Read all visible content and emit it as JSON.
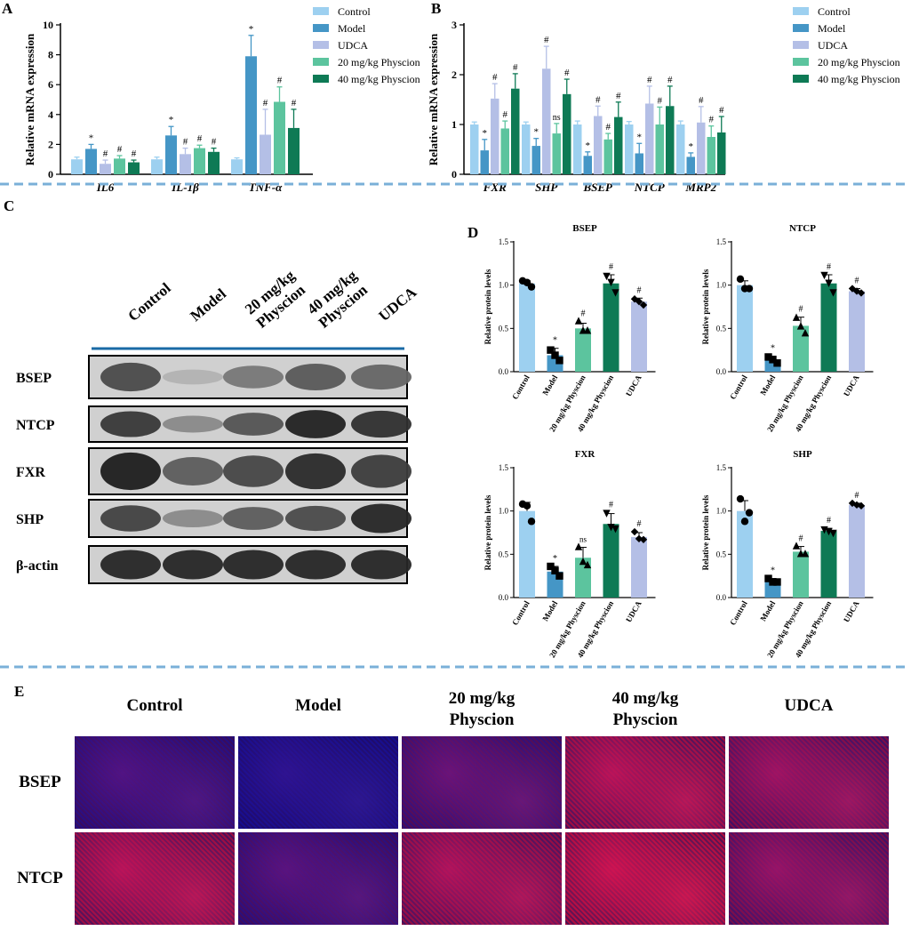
{
  "colors": {
    "control": "#9dd0f0",
    "model": "#4596c6",
    "udca": "#b4bfe6",
    "phy20": "#5cc49e",
    "phy40": "#0e7a55",
    "divider": "#7ab0d8",
    "blot_bg": "#d0d0d0",
    "blot_band": "#202020",
    "fluor_blue": "#1a1aa8",
    "fluor_red": "#d42020"
  },
  "panel_letters": {
    "a": "A",
    "b": "B",
    "c": "C",
    "d": "D",
    "e": "E"
  },
  "legend": [
    "Control",
    "Model",
    "UDCA",
    "20 mg/kg Physcion",
    "40 mg/kg Physcion"
  ],
  "chart_data": [
    {
      "id": "A",
      "type": "bar",
      "ylabel": "Relative mRNA expression",
      "ylim": [
        0,
        10
      ],
      "yticks": [
        0,
        2,
        4,
        6,
        8,
        10
      ],
      "categories": [
        "IL6",
        "IL-1β",
        "TNF-α"
      ],
      "series": [
        {
          "name": "Control",
          "color_key": "control",
          "values": [
            1.0,
            1.0,
            1.0
          ],
          "errors": [
            0.15,
            0.15,
            0.1
          ],
          "marks": [
            "",
            "",
            ""
          ]
        },
        {
          "name": "Model",
          "color_key": "model",
          "values": [
            1.7,
            2.6,
            7.9
          ],
          "errors": [
            0.3,
            0.6,
            1.4
          ],
          "marks": [
            "*",
            "*",
            "*"
          ]
        },
        {
          "name": "UDCA",
          "color_key": "udca",
          "values": [
            0.7,
            1.35,
            2.65
          ],
          "errors": [
            0.25,
            0.4,
            1.7
          ],
          "marks": [
            "#",
            "#",
            "#"
          ]
        },
        {
          "name": "20 mg/kg Physcion",
          "color_key": "phy20",
          "values": [
            1.05,
            1.75,
            4.85
          ],
          "errors": [
            0.2,
            0.2,
            1.0
          ],
          "marks": [
            "#",
            "#",
            "#"
          ]
        },
        {
          "name": "40 mg/kg Physcion",
          "color_key": "phy40",
          "values": [
            0.8,
            1.5,
            3.1
          ],
          "errors": [
            0.15,
            0.25,
            1.25
          ],
          "marks": [
            "#",
            "#",
            "#"
          ]
        }
      ]
    },
    {
      "id": "B",
      "type": "bar",
      "ylabel": "Relative mRNA expression",
      "ylim": [
        0,
        3
      ],
      "yticks": [
        0,
        1,
        2,
        3
      ],
      "categories": [
        "FXR",
        "SHP",
        "BSEP",
        "NTCP",
        "MRP2"
      ],
      "series": [
        {
          "name": "Control",
          "color_key": "control",
          "values": [
            1.0,
            1.0,
            1.0,
            1.0,
            1.0
          ],
          "errors": [
            0.05,
            0.05,
            0.07,
            0.06,
            0.07
          ],
          "marks": [
            "",
            "",
            "",
            "",
            ""
          ]
        },
        {
          "name": "Model",
          "color_key": "model",
          "values": [
            0.48,
            0.57,
            0.37,
            0.42,
            0.35
          ],
          "errors": [
            0.22,
            0.15,
            0.08,
            0.2,
            0.08
          ],
          "marks": [
            "*",
            "*",
            "*",
            "*",
            "*"
          ]
        },
        {
          "name": "UDCA",
          "color_key": "udca",
          "values": [
            1.52,
            2.12,
            1.17,
            1.42,
            1.04
          ],
          "errors": [
            0.3,
            0.45,
            0.2,
            0.35,
            0.32
          ],
          "marks": [
            "#",
            "#",
            "#",
            "#",
            "#"
          ]
        },
        {
          "name": "20 mg/kg Physcion",
          "color_key": "phy20",
          "values": [
            0.92,
            0.82,
            0.7,
            1.0,
            0.75
          ],
          "errors": [
            0.15,
            0.2,
            0.12,
            0.35,
            0.22
          ],
          "marks": [
            "#",
            "ns",
            "#",
            "#",
            "#"
          ]
        },
        {
          "name": "40 mg/kg Physcion",
          "color_key": "phy40",
          "values": [
            1.72,
            1.61,
            1.15,
            1.37,
            0.84
          ],
          "errors": [
            0.3,
            0.3,
            0.3,
            0.4,
            0.32
          ],
          "marks": [
            "#",
            "#",
            "#",
            "#",
            "#"
          ]
        }
      ]
    },
    {
      "id": "D-BSEP",
      "type": "bar",
      "title": "BSEP",
      "ylabel": "Relative protein levels",
      "ylim": [
        0,
        1.5
      ],
      "yticks": [
        "0.0",
        "0.5",
        "1.0",
        "1.5"
      ],
      "categories": [
        "Control",
        "Model",
        "20 mg/kg Physcion",
        "40 mg/kg Physcion",
        "UDCA"
      ],
      "color_keys": [
        "control",
        "model",
        "phy20",
        "phy40",
        "udca"
      ],
      "markers": [
        "circle",
        "square",
        "triangle",
        "triangle-down",
        "diamond"
      ],
      "values": [
        1.02,
        0.19,
        0.5,
        1.02,
        0.81
      ],
      "errors": [
        0.03,
        0.08,
        0.06,
        0.1,
        0.04
      ],
      "points": [
        [
          1.05,
          0.98,
          1.03
        ],
        [
          0.25,
          0.13,
          0.19
        ],
        [
          0.58,
          0.47,
          0.47
        ],
        [
          1.11,
          0.92,
          1.04
        ],
        [
          0.84,
          0.77,
          0.81
        ]
      ],
      "marks": [
        "",
        "*",
        "#",
        "#",
        "#"
      ]
    },
    {
      "id": "D-NTCP",
      "type": "bar",
      "title": "NTCP",
      "ylabel": "Relative protein levels",
      "ylim": [
        0,
        1.5
      ],
      "yticks": [
        "0.0",
        "0.5",
        "1.0",
        "1.5"
      ],
      "categories": [
        "Control",
        "Model",
        "20 mg/kg Physcion",
        "40 mg/kg Physcion",
        "UDCA"
      ],
      "color_keys": [
        "control",
        "model",
        "phy20",
        "phy40",
        "udca"
      ],
      "markers": [
        "circle",
        "square",
        "triangle",
        "triangle-down",
        "diamond"
      ],
      "values": [
        1.0,
        0.13,
        0.53,
        1.02,
        0.93
      ],
      "errors": [
        0.05,
        0.05,
        0.1,
        0.1,
        0.03
      ],
      "points": [
        [
          1.07,
          0.96,
          0.96
        ],
        [
          0.17,
          0.1,
          0.14
        ],
        [
          0.62,
          0.44,
          0.52
        ],
        [
          1.12,
          0.92,
          1.03
        ],
        [
          0.96,
          0.91,
          0.93
        ]
      ],
      "marks": [
        "",
        "*",
        "#",
        "#",
        "#"
      ]
    },
    {
      "id": "D-FXR",
      "type": "bar",
      "title": "FXR",
      "ylabel": "Relative protein levels",
      "ylim": [
        0,
        1.5
      ],
      "yticks": [
        "0.0",
        "0.5",
        "1.0",
        "1.5"
      ],
      "categories": [
        "Control",
        "Model",
        "20 mg/kg Physcion",
        "40 mg/kg Physcion",
        "UDCA"
      ],
      "color_keys": [
        "control",
        "model",
        "phy20",
        "phy40",
        "udca"
      ],
      "markers": [
        "circle",
        "square",
        "triangle",
        "triangle-down",
        "diamond"
      ],
      "values": [
        1.0,
        0.3,
        0.46,
        0.85,
        0.7
      ],
      "errors": [
        0.1,
        0.06,
        0.12,
        0.12,
        0.05
      ],
      "points": [
        [
          1.08,
          0.88,
          1.06
        ],
        [
          0.36,
          0.25,
          0.31
        ],
        [
          0.58,
          0.37,
          0.41
        ],
        [
          0.98,
          0.8,
          0.82
        ],
        [
          0.76,
          0.67,
          0.68
        ]
      ],
      "marks": [
        "",
        "*",
        "ns",
        "#",
        "#"
      ]
    },
    {
      "id": "D-SHP",
      "type": "bar",
      "title": "SHP",
      "ylabel": "Relative protein levels",
      "ylim": [
        0,
        1.5
      ],
      "yticks": [
        "0.0",
        "0.5",
        "1.0",
        "1.5"
      ],
      "categories": [
        "Control",
        "Model",
        "20 mg/kg Physcion",
        "40 mg/kg Physcion",
        "UDCA"
      ],
      "color_keys": [
        "control",
        "model",
        "phy20",
        "phy40",
        "udca"
      ],
      "markers": [
        "circle",
        "square",
        "triangle",
        "triangle-down",
        "diamond"
      ],
      "values": [
        1.0,
        0.19,
        0.53,
        0.77,
        1.07
      ],
      "errors": [
        0.12,
        0.03,
        0.06,
        0.03,
        0.02
      ],
      "points": [
        [
          1.14,
          0.98,
          0.88
        ],
        [
          0.22,
          0.18,
          0.18
        ],
        [
          0.59,
          0.5,
          0.5
        ],
        [
          0.79,
          0.75,
          0.77
        ],
        [
          1.09,
          1.06,
          1.07
        ]
      ],
      "marks": [
        "",
        "*",
        "#",
        "#",
        "#"
      ]
    }
  ],
  "western_blot": {
    "lanes": [
      "Control",
      "Model",
      "20 mg/kg Physcion",
      "40 mg/kg Physcion",
      "UDCA"
    ],
    "proteins": [
      {
        "name": "BSEP",
        "intensity": [
          0.7,
          0.12,
          0.45,
          0.62,
          0.55
        ]
      },
      {
        "name": "NTCP",
        "intensity": [
          0.8,
          0.35,
          0.65,
          0.92,
          0.85
        ]
      },
      {
        "name": "FXR",
        "intensity": [
          0.95,
          0.6,
          0.72,
          0.88,
          0.78
        ]
      },
      {
        "name": "SHP",
        "intensity": [
          0.75,
          0.35,
          0.6,
          0.7,
          0.9
        ]
      },
      {
        "name": "β-actin",
        "intensity": [
          0.9,
          0.9,
          0.9,
          0.9,
          0.9
        ]
      }
    ]
  },
  "fluorescence": {
    "columns": [
      "Control",
      "Model",
      "20 mg/kg Physcion",
      "40 mg/kg Physcion",
      "UDCA"
    ],
    "rows": [
      {
        "name": "BSEP",
        "red_level": [
          0.25,
          0.05,
          0.4,
          0.85,
          0.7
        ]
      },
      {
        "name": "NTCP",
        "red_level": [
          0.85,
          0.3,
          0.8,
          0.95,
          0.65
        ]
      }
    ]
  }
}
